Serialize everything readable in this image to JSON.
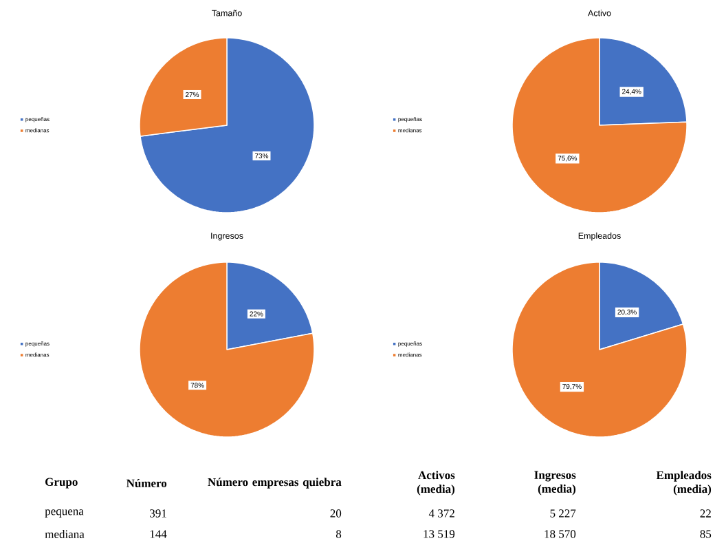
{
  "chart_data": [
    {
      "type": "pie",
      "title": "Tamaño",
      "categories": [
        "pequeñas",
        "medianas"
      ],
      "values": [
        73,
        27
      ],
      "colors": [
        "#4472c4",
        "#ed7d31"
      ],
      "value_labels": [
        "73%",
        "27%"
      ],
      "legend": "left"
    },
    {
      "type": "pie",
      "title": "Activo",
      "categories": [
        "pequeñas",
        "medianas"
      ],
      "values": [
        24.4,
        75.6
      ],
      "colors": [
        "#4472c4",
        "#ed7d31"
      ],
      "value_labels": [
        "24,4%",
        "75,6%"
      ],
      "legend": "left"
    },
    {
      "type": "pie",
      "title": "Ingresos",
      "categories": [
        "pequeñas",
        "medianas"
      ],
      "values": [
        22,
        78
      ],
      "colors": [
        "#4472c4",
        "#ed7d31"
      ],
      "value_labels": [
        "22%",
        "78%"
      ],
      "legend": "left"
    },
    {
      "type": "pie",
      "title": "Empleados",
      "categories": [
        "pequeñas",
        "medianas"
      ],
      "values": [
        20.3,
        79.7
      ],
      "colors": [
        "#4472c4",
        "#ed7d31"
      ],
      "value_labels": [
        "20,3%",
        "79,7%"
      ],
      "legend": "left"
    },
    {
      "type": "other",
      "annotations": [
        "Grupo",
        "Número",
        "Número empresas quiebra",
        "Activos (media)",
        "Ingresos (media)",
        "Empleados (media)",
        "pequena",
        "391",
        "20",
        "4 372",
        "5 227",
        "22",
        "mediana",
        "144",
        "8",
        "13 519",
        "18 570",
        "85"
      ]
    }
  ]
}
